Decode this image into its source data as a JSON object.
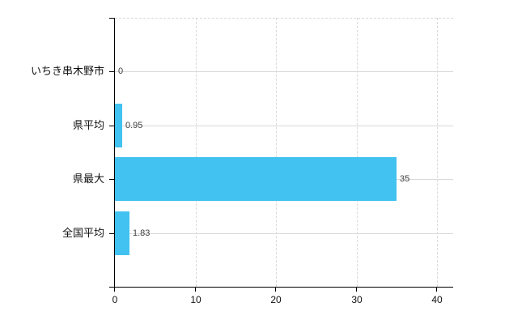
{
  "chart_data": {
    "type": "bar",
    "orientation": "horizontal",
    "categories": [
      "いちき串木野市",
      "県平均",
      "県最大",
      "全国平均"
    ],
    "values": [
      0,
      0.95,
      35,
      1.83
    ],
    "value_labels": [
      "0",
      "0.95",
      "35",
      "1.83"
    ],
    "x_axis": {
      "ticks": [
        0,
        10,
        20,
        30,
        40
      ],
      "tick_labels": [
        "0",
        "10",
        "20",
        "30",
        "40"
      ],
      "range": [
        0,
        42
      ]
    },
    "layout_hints": {
      "grid_vertical": "dashed",
      "grid_category_lines": true,
      "plot_top_border": "dashed",
      "legend": "none"
    },
    "colors": {
      "bar": "#41C2F0",
      "gridline": "#D9D9D9",
      "axis": "#000000",
      "category_label": "#111111",
      "value_label": "#404040",
      "tick_label": "#111111",
      "background": "#FFFFFF"
    }
  }
}
